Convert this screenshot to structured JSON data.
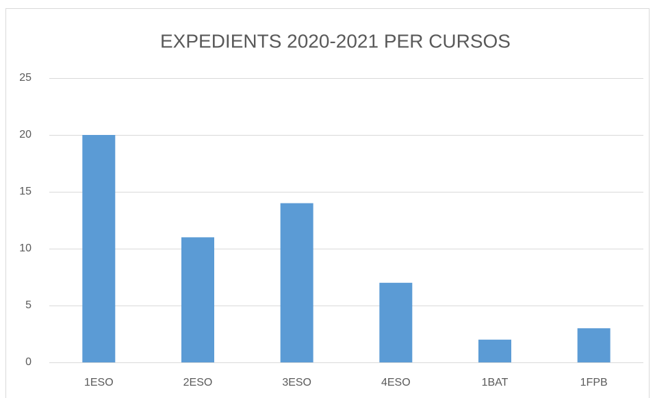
{
  "chart_data": {
    "type": "bar",
    "title": "EXPEDIENTS 2020-2021 PER CURSOS",
    "categories": [
      "1ESO",
      "2ESO",
      "3ESO",
      "4ESO",
      "1BAT",
      "1FPB"
    ],
    "values": [
      20,
      11,
      14,
      7,
      2,
      3
    ],
    "color": "#5b9bd5",
    "ylim": [
      0,
      25
    ],
    "yticks": [
      0,
      5,
      10,
      15,
      20,
      25
    ],
    "grid": true
  }
}
